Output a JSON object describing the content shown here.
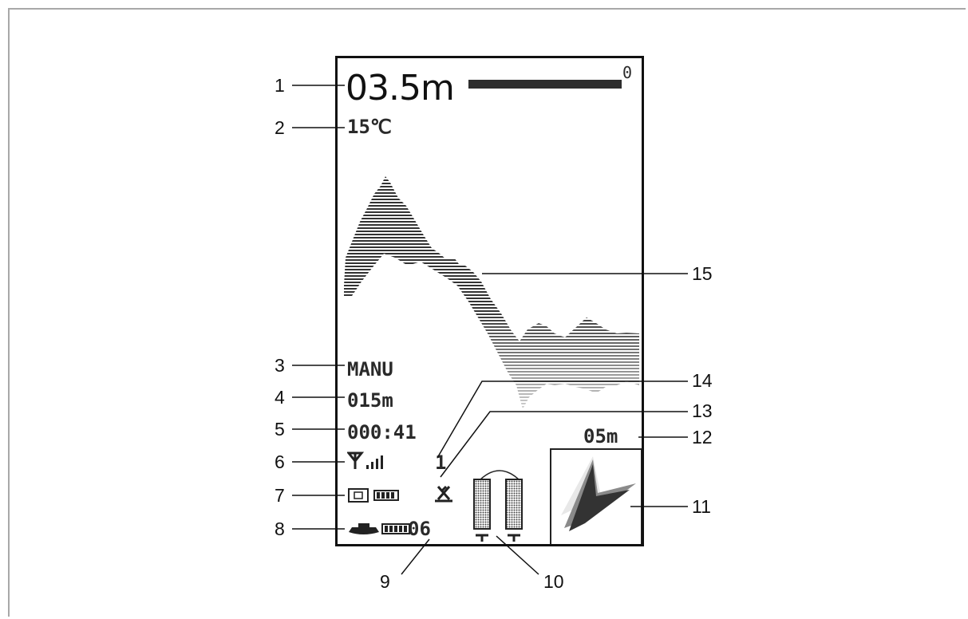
{
  "display": {
    "depth": "03.5m",
    "depth_scale_top": "0",
    "temperature": "15℃",
    "mode": "MANU",
    "range": "015m",
    "timer": "000:41",
    "satellite_count": "1",
    "remote_boat_battery_value": "06",
    "mini_depth": "05m"
  },
  "icons": {
    "signal": "antenna-signal-icon",
    "transmitter_battery": "transmitter-battery-icon",
    "boat_battery": "boat-battery-icon",
    "gps": "satellite-icon",
    "boat_hoppers": "bait-hopper-icon"
  },
  "callouts": [
    "1",
    "2",
    "3",
    "4",
    "5",
    "6",
    "7",
    "8",
    "9",
    "10",
    "11",
    "12",
    "13",
    "14",
    "15"
  ],
  "colors": {
    "frame": "#a8a8a8",
    "screen_border": "#111111",
    "text": "#2a2a2a",
    "sonar": "#3a3a3a"
  }
}
